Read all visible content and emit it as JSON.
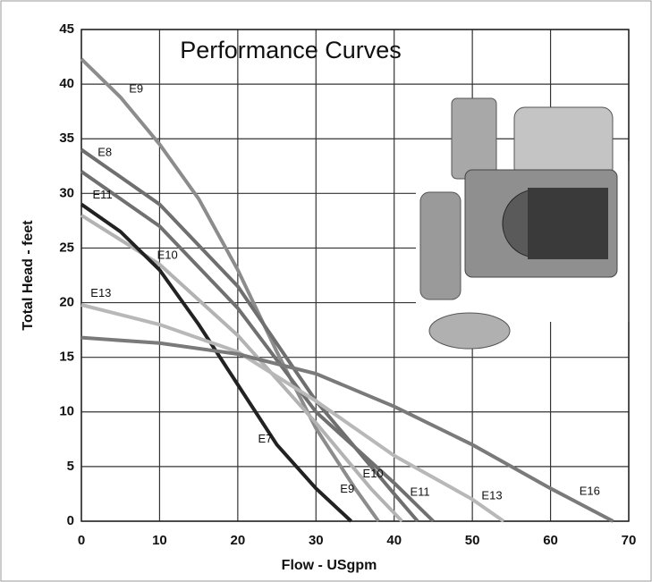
{
  "chart_data": {
    "type": "line",
    "title": "Performance Curves",
    "xlabel": "Flow - USgpm",
    "ylabel": "Total Head - feet",
    "xlim": [
      0,
      70
    ],
    "ylim": [
      0,
      45
    ],
    "xticks": [
      0,
      10,
      20,
      30,
      40,
      50,
      60,
      70
    ],
    "yticks": [
      0,
      5,
      10,
      15,
      20,
      25,
      30,
      35,
      40,
      45
    ],
    "grid": true,
    "series": [
      {
        "name": "E9",
        "color": "#8c8c8c",
        "x": [
          0,
          5,
          10,
          15,
          20,
          25,
          30,
          35,
          38
        ],
        "values": [
          42.3,
          38.8,
          34.5,
          29.5,
          23,
          15.5,
          8.5,
          3,
          0
        ]
      },
      {
        "name": "E8",
        "color": "#6f6f6f",
        "x": [
          0,
          10,
          20,
          30,
          40,
          43
        ],
        "values": [
          34,
          29,
          21.5,
          11,
          2.5,
          0
        ]
      },
      {
        "name": "E11",
        "color": "#707070",
        "x": [
          0,
          10,
          20,
          30,
          40,
          45
        ],
        "values": [
          32,
          27,
          19.5,
          10,
          3.5,
          0
        ]
      },
      {
        "name": "E10",
        "color": "#b3b3b3",
        "x": [
          0,
          10,
          20,
          30,
          37,
          41
        ],
        "values": [
          28,
          23.5,
          17,
          9,
          3,
          0
        ]
      },
      {
        "name": "E7",
        "color": "#222222",
        "x": [
          0,
          5,
          10,
          15,
          20,
          25,
          30,
          34.5
        ],
        "values": [
          29,
          26.5,
          23,
          18,
          12.5,
          7,
          3,
          0
        ]
      },
      {
        "name": "E13",
        "color": "#b8b8b8",
        "x": [
          0,
          10,
          20,
          30,
          40,
          50,
          54
        ],
        "values": [
          19.8,
          18,
          15.5,
          11,
          6,
          2,
          0
        ]
      },
      {
        "name": "E16",
        "color": "#7a7a7a",
        "x": [
          0,
          10,
          20,
          30,
          40,
          50,
          60,
          68
        ],
        "values": [
          16.8,
          16.3,
          15.3,
          13.5,
          10.5,
          7,
          3,
          0
        ]
      }
    ]
  }
}
